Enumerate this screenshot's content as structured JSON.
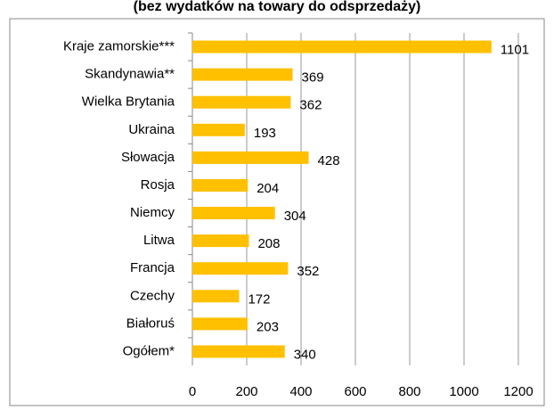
{
  "chart_data": {
    "type": "bar",
    "orientation": "horizontal",
    "title": "(bez wydatków na towary do odsprzedaży)",
    "categories": [
      "Kraje zamorskie***",
      "Skandynawia**",
      "Wielka Brytania",
      "Ukraina",
      "Słowacja",
      "Rosja",
      "Niemcy",
      "Litwa",
      "Francja",
      "Czechy",
      "Białoruś",
      "Ogółem*"
    ],
    "values": [
      1101,
      369,
      362,
      193,
      428,
      204,
      304,
      208,
      352,
      172,
      203,
      340
    ],
    "color": "#ffc000",
    "xlim": [
      0,
      1200
    ],
    "xticks": [
      0,
      200,
      400,
      600,
      800,
      1000,
      1200
    ],
    "grid": true
  }
}
